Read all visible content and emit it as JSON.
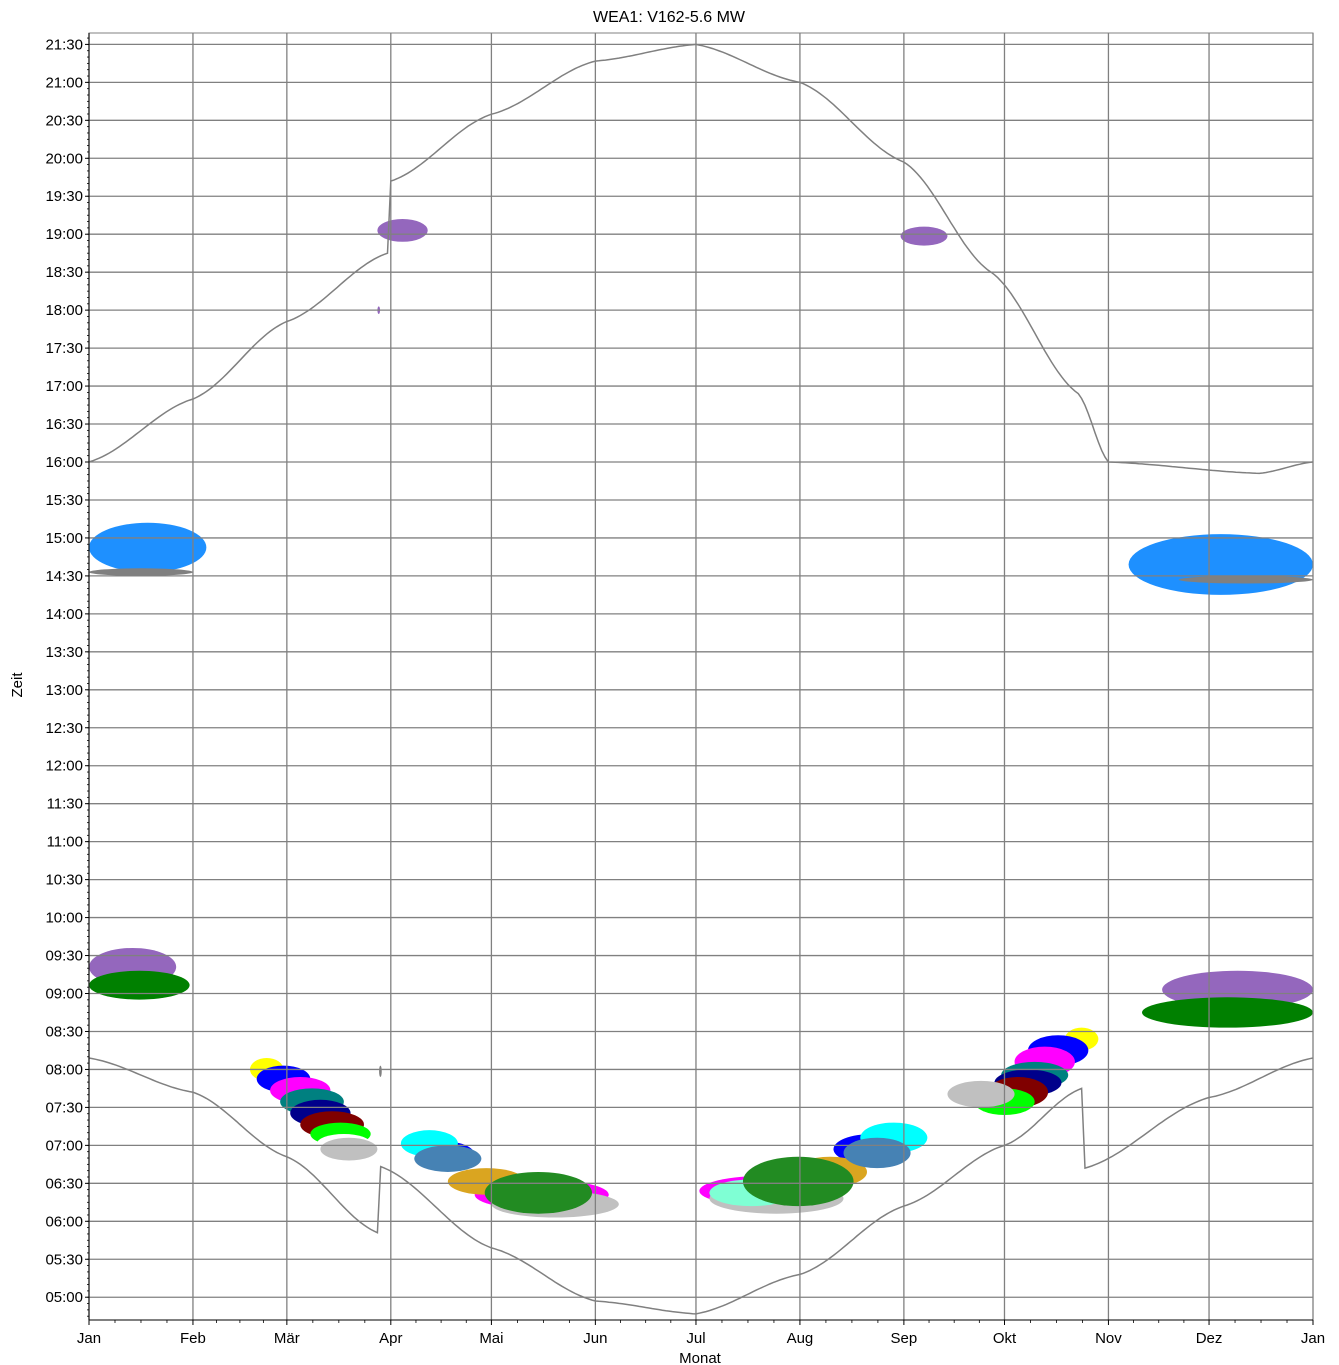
{
  "chart_data": {
    "type": "heatmap",
    "title": "WEA1: V162-5.6 MW",
    "xlabel": "Monat",
    "ylabel": "Zeit",
    "x_ticks": [
      "Jan",
      "Feb",
      "Mär",
      "Apr",
      "Mai",
      "Jun",
      "Jul",
      "Aug",
      "Sep",
      "Okt",
      "Nov",
      "Dez",
      "Jan"
    ],
    "y_ticks": [
      "05:00",
      "05:30",
      "06:00",
      "06:30",
      "07:00",
      "07:30",
      "08:00",
      "08:30",
      "09:00",
      "09:30",
      "10:00",
      "10:30",
      "11:00",
      "11:30",
      "12:00",
      "12:30",
      "13:00",
      "13:30",
      "14:00",
      "14:30",
      "15:00",
      "15:30",
      "16:00",
      "16:30",
      "17:00",
      "17:30",
      "18:00",
      "18:30",
      "19:00",
      "19:30",
      "20:00",
      "20:30",
      "21:00",
      "21:30"
    ],
    "x_range_days": [
      0,
      365
    ],
    "y_range_hours": [
      4.7,
      21.65
    ],
    "grid": true,
    "daylight_curves": {
      "sunset_hours": [
        16.0,
        16.83,
        17.85,
        18.75,
        19.7,
        20.58,
        21.28,
        21.5,
        21.0,
        19.95,
        18.5,
        16.9,
        16.0,
        15.85,
        16.0
      ],
      "sunset_days": [
        0,
        31,
        59,
        89,
        90,
        120,
        151,
        181,
        212,
        243,
        269,
        295,
        304,
        349,
        365
      ],
      "sunrise_hours": [
        8.15,
        7.7,
        6.85,
        5.85,
        6.72,
        5.65,
        4.95,
        4.78,
        5.3,
        6.2,
        7.0,
        7.75,
        6.7,
        7.63,
        8.15
      ],
      "sunrise_days": [
        0,
        31,
        59,
        86,
        87,
        120,
        151,
        181,
        212,
        243,
        273,
        296,
        297,
        334,
        365
      ],
      "color": "#808080"
    },
    "series": [
      {
        "color": "#1e90ff",
        "blobs": [
          {
            "d0": 0,
            "d1": 35,
            "h0": 14.55,
            "h1": 15.2
          },
          {
            "d0": 310,
            "d1": 365,
            "h0": 14.25,
            "h1": 15.05
          }
        ]
      },
      {
        "color": "#9467bd",
        "blobs": [
          {
            "d0": 0,
            "d1": 26,
            "h0": 9.1,
            "h1": 9.6
          },
          {
            "d0": 320,
            "d1": 365,
            "h0": 8.8,
            "h1": 9.3
          },
          {
            "d0": 86,
            "d1": 101,
            "h0": 18.9,
            "h1": 19.2
          },
          {
            "d0": 242,
            "d1": 256,
            "h0": 18.85,
            "h1": 19.1
          },
          {
            "d0": 86,
            "d1": 86.8,
            "h0": 17.95,
            "h1": 18.05
          }
        ]
      },
      {
        "color": "#008000",
        "blobs": [
          {
            "d0": 0,
            "d1": 30,
            "h0": 8.92,
            "h1": 9.3
          },
          {
            "d0": 314,
            "d1": 365,
            "h0": 8.55,
            "h1": 8.95
          }
        ]
      },
      {
        "color": "#ffff00",
        "blobs": [
          {
            "d0": 48,
            "d1": 58,
            "h0": 7.85,
            "h1": 8.15
          },
          {
            "d0": 291,
            "d1": 301,
            "h0": 8.25,
            "h1": 8.55
          }
        ]
      },
      {
        "color": "#0000ff",
        "blobs": [
          {
            "d0": 50,
            "d1": 66,
            "h0": 7.7,
            "h1": 8.05
          },
          {
            "d0": 280,
            "d1": 298,
            "h0": 8.05,
            "h1": 8.45
          },
          {
            "d0": 98,
            "d1": 115,
            "h0": 6.7,
            "h1": 7.05
          },
          {
            "d0": 222,
            "d1": 245,
            "h0": 6.75,
            "h1": 7.15
          }
        ]
      },
      {
        "color": "#ff00ff",
        "blobs": [
          {
            "d0": 54,
            "d1": 72,
            "h0": 7.55,
            "h1": 7.9
          },
          {
            "d0": 276,
            "d1": 294,
            "h0": 7.9,
            "h1": 8.3
          },
          {
            "d0": 115,
            "d1": 155,
            "h0": 6.15,
            "h1": 6.55
          },
          {
            "d0": 182,
            "d1": 222,
            "h0": 6.2,
            "h1": 6.6
          }
        ]
      },
      {
        "color": "#008080",
        "blobs": [
          {
            "d0": 57,
            "d1": 76,
            "h0": 7.4,
            "h1": 7.75
          },
          {
            "d0": 272,
            "d1": 292,
            "h0": 7.75,
            "h1": 8.1
          }
        ]
      },
      {
        "color": "#00008b",
        "blobs": [
          {
            "d0": 60,
            "d1": 78,
            "h0": 7.25,
            "h1": 7.6
          },
          {
            "d0": 270,
            "d1": 290,
            "h0": 7.65,
            "h1": 8.0
          }
        ]
      },
      {
        "color": "#800000",
        "blobs": [
          {
            "d0": 63,
            "d1": 82,
            "h0": 7.1,
            "h1": 7.45
          },
          {
            "d0": 268,
            "d1": 286,
            "h0": 7.5,
            "h1": 7.9
          }
        ]
      },
      {
        "color": "#00ff00",
        "blobs": [
          {
            "d0": 66,
            "d1": 84,
            "h0": 7.0,
            "h1": 7.3
          },
          {
            "d0": 264,
            "d1": 282,
            "h0": 7.4,
            "h1": 7.75
          }
        ]
      },
      {
        "color": "#ffffff",
        "blobs": [
          {
            "d0": 68,
            "d1": 84,
            "h0": 6.9,
            "h1": 7.15
          }
        ]
      },
      {
        "color": "#c0c0c0",
        "blobs": [
          {
            "d0": 69,
            "d1": 86,
            "h0": 6.8,
            "h1": 7.1
          },
          {
            "d0": 256,
            "d1": 276,
            "h0": 7.5,
            "h1": 7.85
          },
          {
            "d0": 120,
            "d1": 158,
            "h0": 6.05,
            "h1": 6.4
          },
          {
            "d0": 185,
            "d1": 225,
            "h0": 6.1,
            "h1": 6.5
          }
        ]
      },
      {
        "color": "#00ffff",
        "blobs": [
          {
            "d0": 93,
            "d1": 110,
            "h0": 6.85,
            "h1": 7.2
          },
          {
            "d0": 230,
            "d1": 250,
            "h0": 6.9,
            "h1": 7.3
          }
        ]
      },
      {
        "color": "#7fffd4",
        "blobs": [
          {
            "d0": 185,
            "d1": 210,
            "h0": 6.2,
            "h1": 6.55
          }
        ]
      },
      {
        "color": "#daa520",
        "blobs": [
          {
            "d0": 107,
            "d1": 130,
            "h0": 6.35,
            "h1": 6.7
          },
          {
            "d0": 210,
            "d1": 232,
            "h0": 6.45,
            "h1": 6.85
          }
        ]
      },
      {
        "color": "#228b22",
        "blobs": [
          {
            "d0": 118,
            "d1": 150,
            "h0": 6.1,
            "h1": 6.65
          },
          {
            "d0": 195,
            "d1": 228,
            "h0": 6.2,
            "h1": 6.85
          }
        ]
      },
      {
        "color": "#4682b4",
        "blobs": [
          {
            "d0": 97,
            "d1": 117,
            "h0": 6.65,
            "h1": 7.0
          },
          {
            "d0": 225,
            "d1": 245,
            "h0": 6.7,
            "h1": 7.1
          }
        ]
      },
      {
        "color": "#808080",
        "blobs": [
          {
            "d0": 0,
            "d1": 31,
            "h0": 14.5,
            "h1": 14.6
          },
          {
            "d0": 325,
            "d1": 365,
            "h0": 14.4,
            "h1": 14.5
          },
          {
            "d0": 86.5,
            "d1": 87.3,
            "h0": 7.9,
            "h1": 8.05
          }
        ]
      }
    ]
  }
}
